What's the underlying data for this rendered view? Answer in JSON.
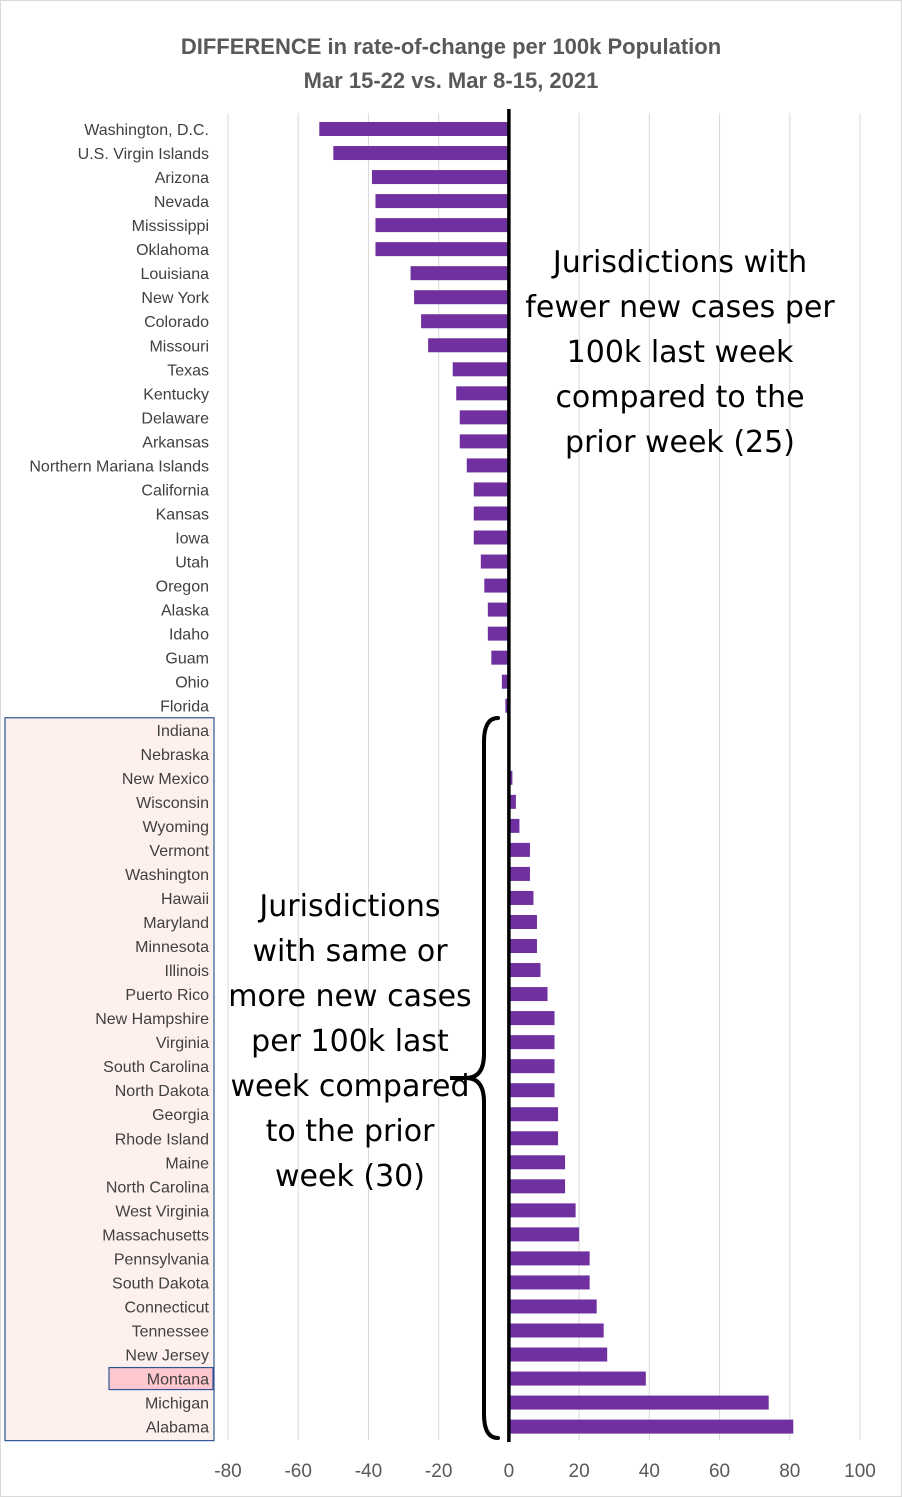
{
  "chart_data": {
    "type": "bar",
    "orientation": "horizontal",
    "title": "DIFFERENCE in rate-of-change per 100k Population",
    "subtitle": "Mar 15-22 vs. Mar 8-15, 2021",
    "xlim": [
      -80,
      100
    ],
    "xticks": [
      -80,
      -60,
      -40,
      -20,
      0,
      20,
      40,
      60,
      80,
      100
    ],
    "grid": "vertical",
    "bar_color": "#7030a0",
    "highlight_box_color": "#fdf0ed",
    "highlight_label_color": "#ffc7ce",
    "box_border_color": "#2f5597",
    "highlighted_category": "Montana",
    "categories": [
      "Washington, D.C.",
      "U.S. Virgin Islands",
      "Arizona",
      "Nevada",
      "Mississippi",
      "Oklahoma",
      "Louisiana",
      "New York",
      "Colorado",
      "Missouri",
      "Texas",
      "Kentucky",
      "Delaware",
      "Arkansas",
      "Northern Mariana Islands",
      "California",
      "Kansas",
      "Iowa",
      "Utah",
      "Oregon",
      "Alaska",
      "Idaho",
      "Guam",
      "Ohio",
      "Florida",
      "Indiana",
      "Nebraska",
      "New Mexico",
      "Wisconsin",
      "Wyoming",
      "Vermont",
      "Washington",
      "Hawaii",
      "Maryland",
      "Minnesota",
      "Illinois",
      "Puerto Rico",
      "New Hampshire",
      "Virginia",
      "South Carolina",
      "North Dakota",
      "Georgia",
      "Rhode Island",
      "Maine",
      "North Carolina",
      "West Virginia",
      "Massachusetts",
      "Pennsylvania",
      "South Dakota",
      "Connecticut",
      "Tennessee",
      "New Jersey",
      "Montana",
      "Michigan",
      "Alabama"
    ],
    "values": [
      -54,
      -50,
      -39,
      -38,
      -38,
      -38,
      -28,
      -27,
      -25,
      -23,
      -16,
      -15,
      -14,
      -14,
      -12,
      -10,
      -10,
      -10,
      -8,
      -7,
      -6,
      -6,
      -5,
      -2,
      -1,
      0,
      0,
      1,
      2,
      3,
      6,
      6,
      7,
      8,
      8,
      9,
      11,
      13,
      13,
      13,
      13,
      14,
      14,
      16,
      16,
      19,
      20,
      23,
      23,
      25,
      27,
      28,
      39,
      74,
      81
    ],
    "annotations": [
      "Jurisdictions with fewer new cases per 100k last week compared to the prior week (25)",
      "Jurisdictions with same or more new cases per 100k last week compared to the prior week (30)"
    ]
  }
}
